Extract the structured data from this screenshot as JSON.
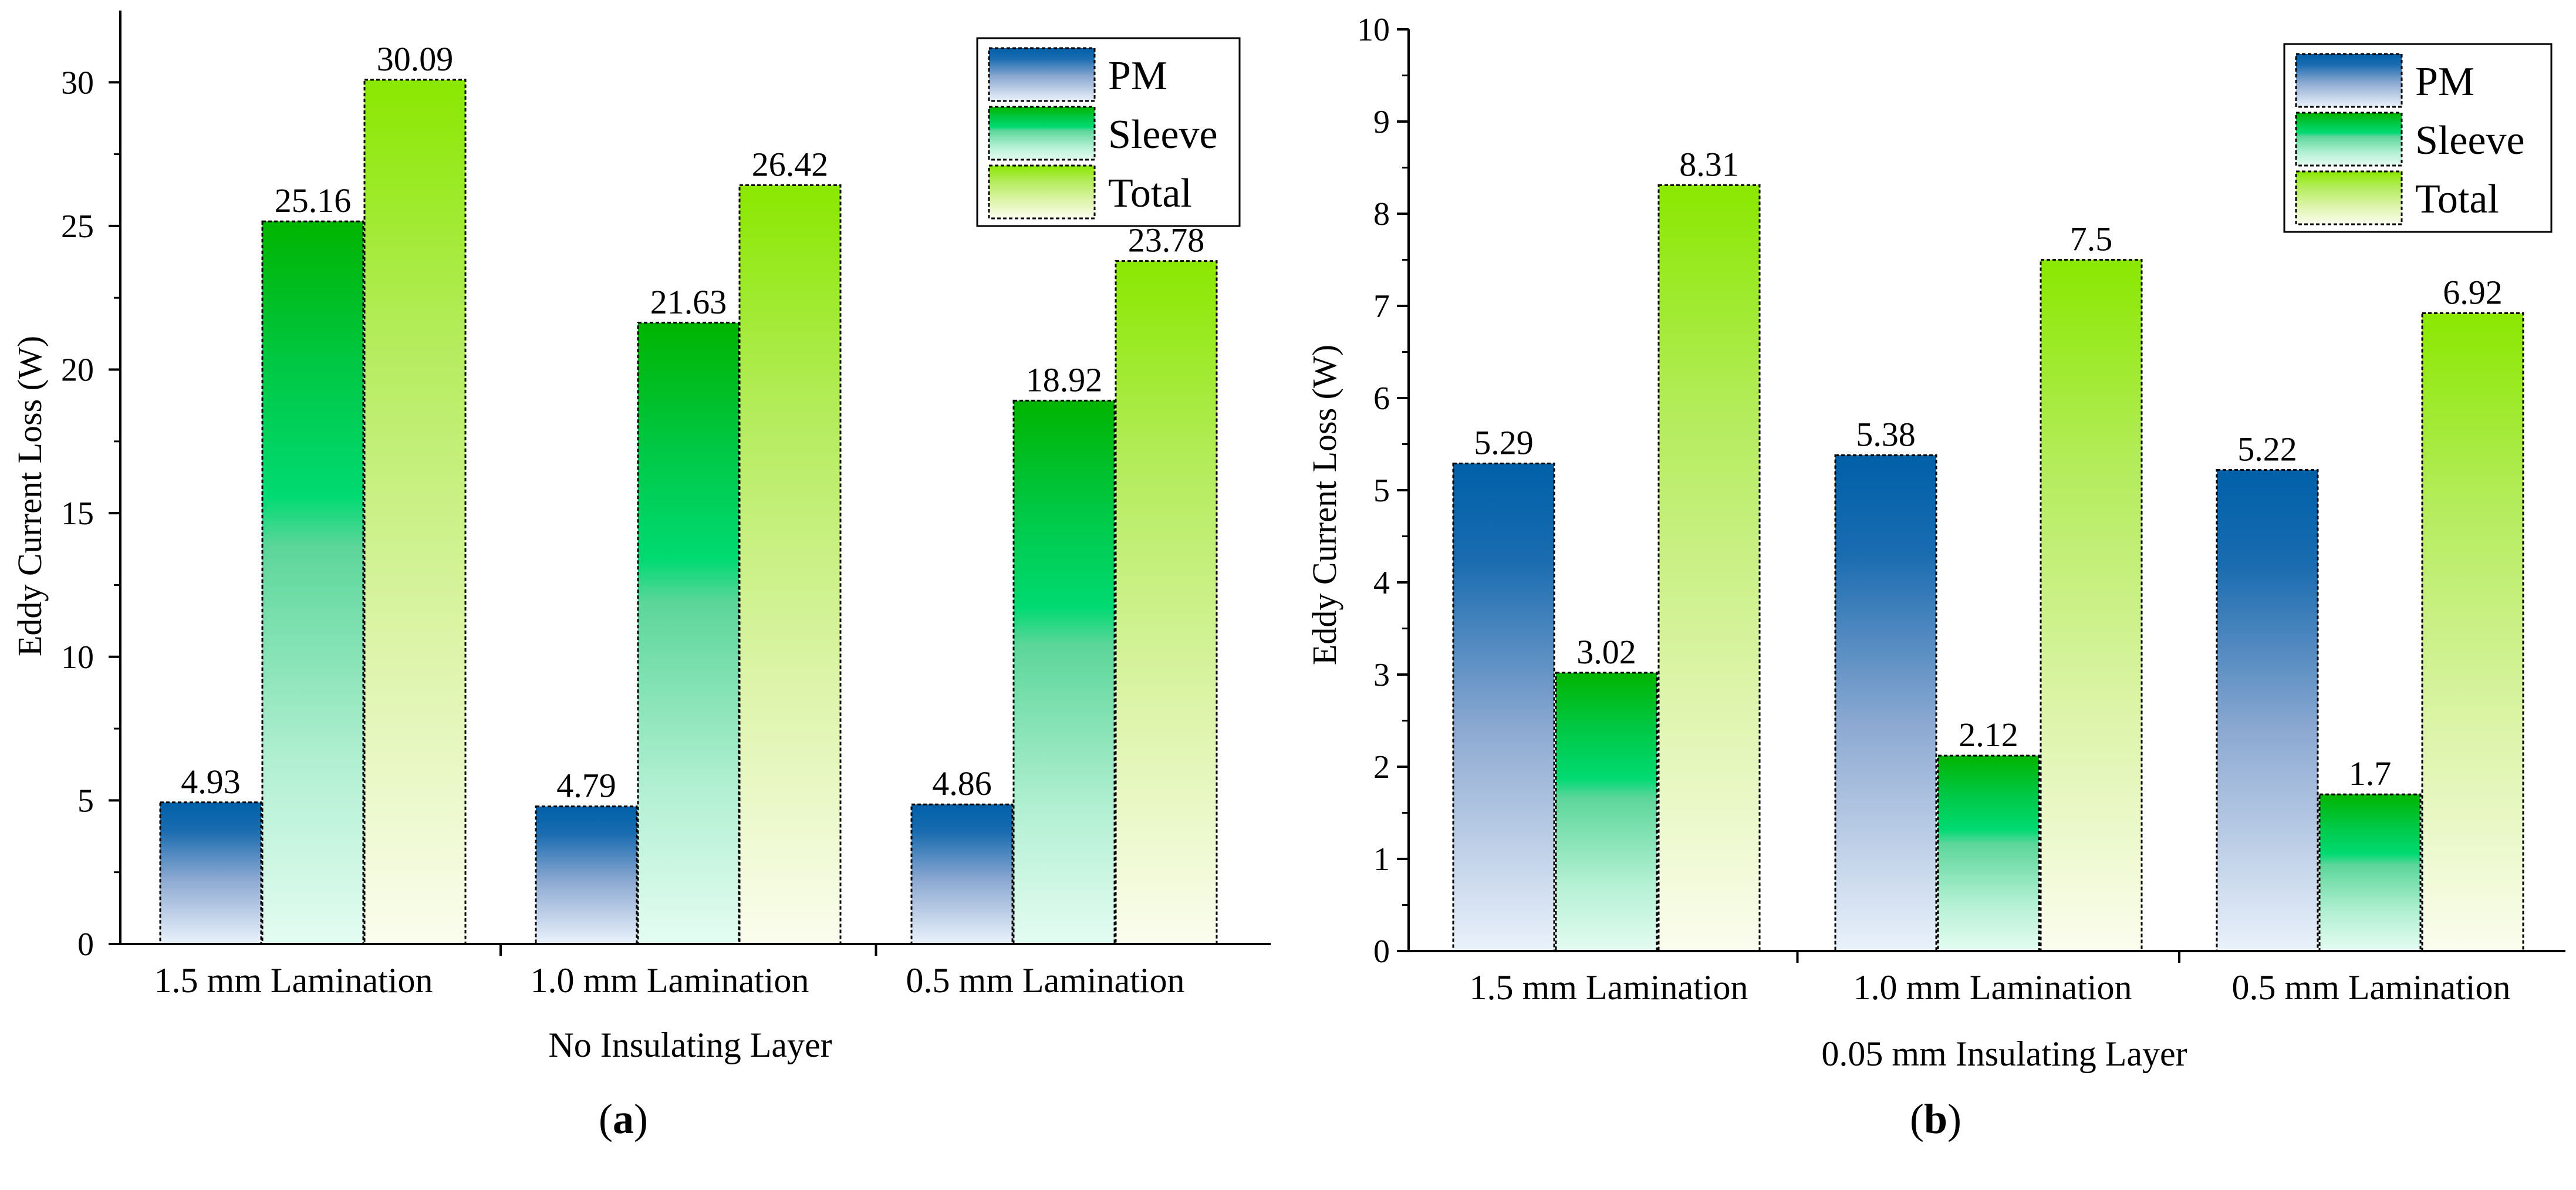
{
  "chart_data": [
    {
      "type": "bar",
      "panel": "a",
      "panel_label": "(a)",
      "title": "",
      "xlabel": "No Insulating Layer",
      "ylabel": "Eddy Current Loss (W)",
      "ylim": [
        0,
        32.5
      ],
      "yticks": [
        0,
        5,
        10,
        15,
        20,
        25,
        30
      ],
      "categories": [
        "1.5 mm Lamination",
        "1.0 mm Lamination",
        "0.5 mm Lamination"
      ],
      "series": [
        {
          "name": "PM",
          "values": [
            4.93,
            4.79,
            4.86
          ],
          "labels": [
            "4.93",
            "4.79",
            "4.86"
          ]
        },
        {
          "name": "Sleeve",
          "values": [
            25.16,
            21.63,
            18.92
          ],
          "labels": [
            "25.16",
            "21.63",
            "18.92"
          ]
        },
        {
          "name": "Total",
          "values": [
            30.09,
            26.42,
            23.78
          ],
          "labels": [
            "30.09",
            "26.42",
            "23.78"
          ]
        }
      ],
      "legend": "top-right",
      "grid": false
    },
    {
      "type": "bar",
      "panel": "b",
      "panel_label": "(b)",
      "title": "",
      "xlabel": "0.05 mm Insulating Layer",
      "ylabel": "Eddy Current Loss (W)",
      "ylim": [
        0,
        10
      ],
      "yticks": [
        0,
        1,
        2,
        3,
        4,
        5,
        6,
        7,
        8,
        9,
        10
      ],
      "categories": [
        "1.5 mm Lamination",
        "1.0 mm Lamination",
        "0.5 mm Lamination"
      ],
      "series": [
        {
          "name": "PM",
          "values": [
            5.29,
            5.38,
            5.22
          ],
          "labels": [
            "5.29",
            "5.38",
            "5.22"
          ]
        },
        {
          "name": "Sleeve",
          "values": [
            3.02,
            2.12,
            1.7
          ],
          "labels": [
            "3.02",
            "2.12",
            "1.7"
          ]
        },
        {
          "name": "Total",
          "values": [
            8.31,
            7.5,
            6.92
          ],
          "labels": [
            "8.31",
            "7.5",
            "6.92"
          ]
        }
      ],
      "legend": "top-right",
      "grid": false
    }
  ],
  "colors": {
    "pm_top": "#0060a8",
    "pm_mid": "#6f95c6",
    "pm_bottom": "#e8f0fa",
    "sleeve_top": "#00b400",
    "sleeve_mid": "#00d86a",
    "sleeve_bottom": "#e2fbf0",
    "total_top": "#8ae800",
    "total_mid": "#c8f27c",
    "total_bottom": "#fbfdec",
    "axis": "#000000"
  }
}
